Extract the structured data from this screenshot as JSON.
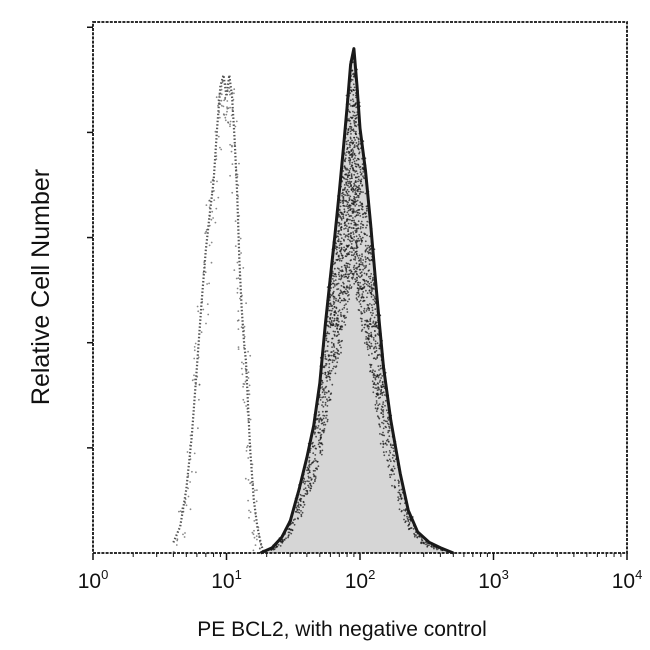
{
  "chart_data": {
    "type": "histogram",
    "title": "",
    "xlabel": "PE BCL2, with negative control",
    "ylabel": "Relative Cell Number",
    "x_scale": "log10",
    "xlim": [
      1,
      10000
    ],
    "ylim": [
      0,
      100
    ],
    "x_ticks": [
      {
        "base": "10",
        "exp": "0",
        "value": 1
      },
      {
        "base": "10",
        "exp": "1",
        "value": 10
      },
      {
        "base": "10",
        "exp": "2",
        "value": 100
      },
      {
        "base": "10",
        "exp": "3",
        "value": 1000
      },
      {
        "base": "10",
        "exp": "4",
        "value": 10000
      }
    ],
    "y_tick_count": 5,
    "grid": false,
    "colors": {
      "axis": "#111111",
      "negative_control": "#555555",
      "pe_bcl2": "#1a1a1a"
    },
    "series": [
      {
        "name": "negative control",
        "style": "light dotted",
        "points": [
          [
            4.0,
            2
          ],
          [
            4.5,
            5
          ],
          [
            5.0,
            12
          ],
          [
            5.5,
            22
          ],
          [
            6.0,
            35
          ],
          [
            6.5,
            47
          ],
          [
            7.0,
            57
          ],
          [
            7.5,
            64
          ],
          [
            8.0,
            70
          ],
          [
            8.5,
            80
          ],
          [
            9.0,
            88
          ],
          [
            9.5,
            90
          ],
          [
            10.0,
            86
          ],
          [
            10.5,
            90
          ],
          [
            11.0,
            86
          ],
          [
            11.5,
            78
          ],
          [
            12.0,
            68
          ],
          [
            12.5,
            55
          ],
          [
            13.0,
            46
          ],
          [
            13.5,
            40
          ],
          [
            14.0,
            36
          ],
          [
            14.5,
            28
          ],
          [
            15.0,
            20
          ],
          [
            16.0,
            10
          ],
          [
            17.0,
            5
          ],
          [
            18.0,
            2
          ],
          [
            19.0,
            0
          ]
        ]
      },
      {
        "name": "PE BCL2",
        "style": "dark filled",
        "points": [
          [
            18,
            0
          ],
          [
            22,
            1
          ],
          [
            26,
            3
          ],
          [
            30,
            6
          ],
          [
            35,
            12
          ],
          [
            40,
            18
          ],
          [
            45,
            24
          ],
          [
            50,
            32
          ],
          [
            55,
            43
          ],
          [
            60,
            52
          ],
          [
            65,
            60
          ],
          [
            70,
            68
          ],
          [
            75,
            76
          ],
          [
            80,
            84
          ],
          [
            85,
            92
          ],
          [
            90,
            95
          ],
          [
            95,
            88
          ],
          [
            100,
            80
          ],
          [
            110,
            72
          ],
          [
            120,
            62
          ],
          [
            130,
            52
          ],
          [
            140,
            43
          ],
          [
            150,
            35
          ],
          [
            170,
            25
          ],
          [
            200,
            15
          ],
          [
            230,
            8
          ],
          [
            270,
            4
          ],
          [
            330,
            2
          ],
          [
            400,
            1
          ],
          [
            500,
            0
          ]
        ]
      }
    ]
  }
}
